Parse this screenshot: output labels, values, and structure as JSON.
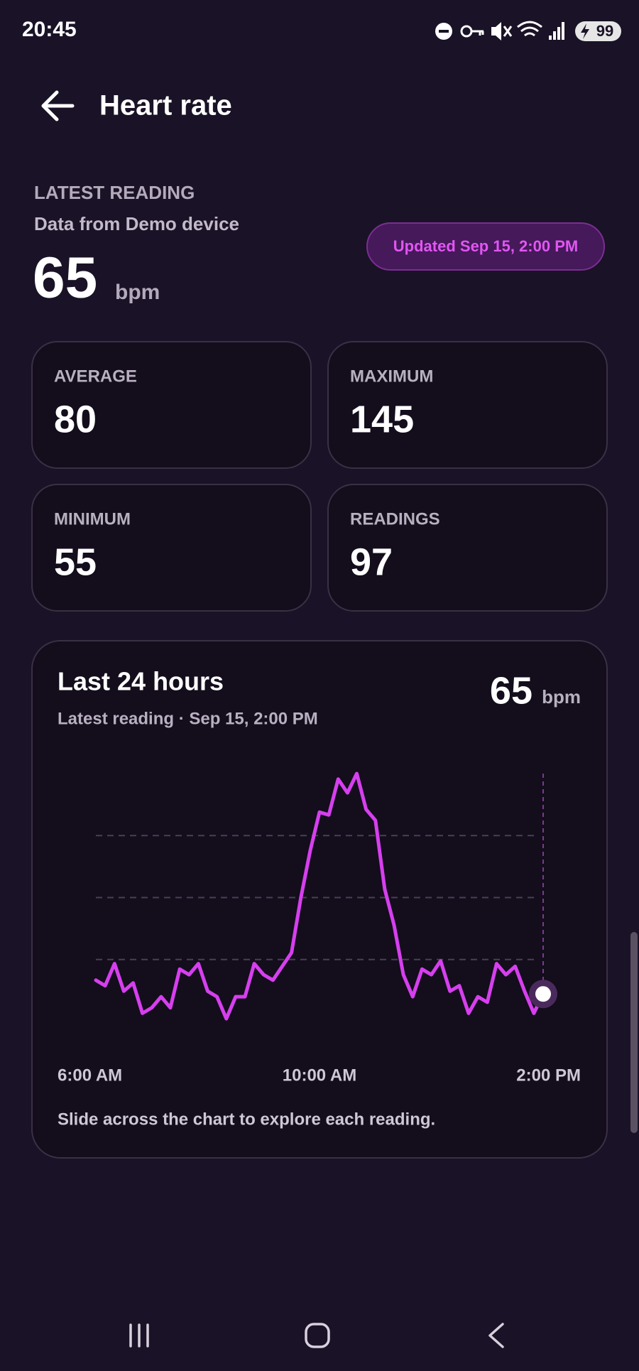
{
  "status_bar": {
    "time": "20:45",
    "battery": "99"
  },
  "header": {
    "title": "Heart rate"
  },
  "latest": {
    "label": "LATEST READING",
    "source": "Data from Demo device",
    "value": 65,
    "unit": "bpm",
    "updated": "Updated Sep 15, 2:00 PM"
  },
  "stats": [
    {
      "label": "AVERAGE",
      "value": 80
    },
    {
      "label": "MAXIMUM",
      "value": 145
    },
    {
      "label": "MINIMUM",
      "value": 55
    },
    {
      "label": "READINGS",
      "value": 97
    }
  ],
  "chart_data": {
    "type": "line",
    "title": "Last 24 hours",
    "subtitle": "Latest reading · Sep 15, 2:00 PM",
    "latest_value": 65,
    "unit": "bpm",
    "values": [
      70,
      68,
      76,
      66,
      69,
      58,
      60,
      64,
      60,
      74,
      72,
      76,
      66,
      64,
      56,
      64,
      64,
      76,
      72,
      70,
      75,
      80,
      100,
      117,
      131,
      130,
      143,
      138,
      145,
      132,
      128,
      103,
      90,
      72,
      64,
      74,
      72,
      77,
      66,
      68,
      58,
      64,
      62,
      76,
      72,
      75,
      66,
      58,
      65
    ],
    "color": "#d63fee",
    "ylim": [
      55,
      145
    ],
    "grid_lines": [
      77.5,
      100,
      122.5
    ],
    "x_labels": [
      "6:00 AM",
      "10:00 AM",
      "2:00 PM"
    ],
    "hint": "Slide across the chart to explore each reading."
  }
}
